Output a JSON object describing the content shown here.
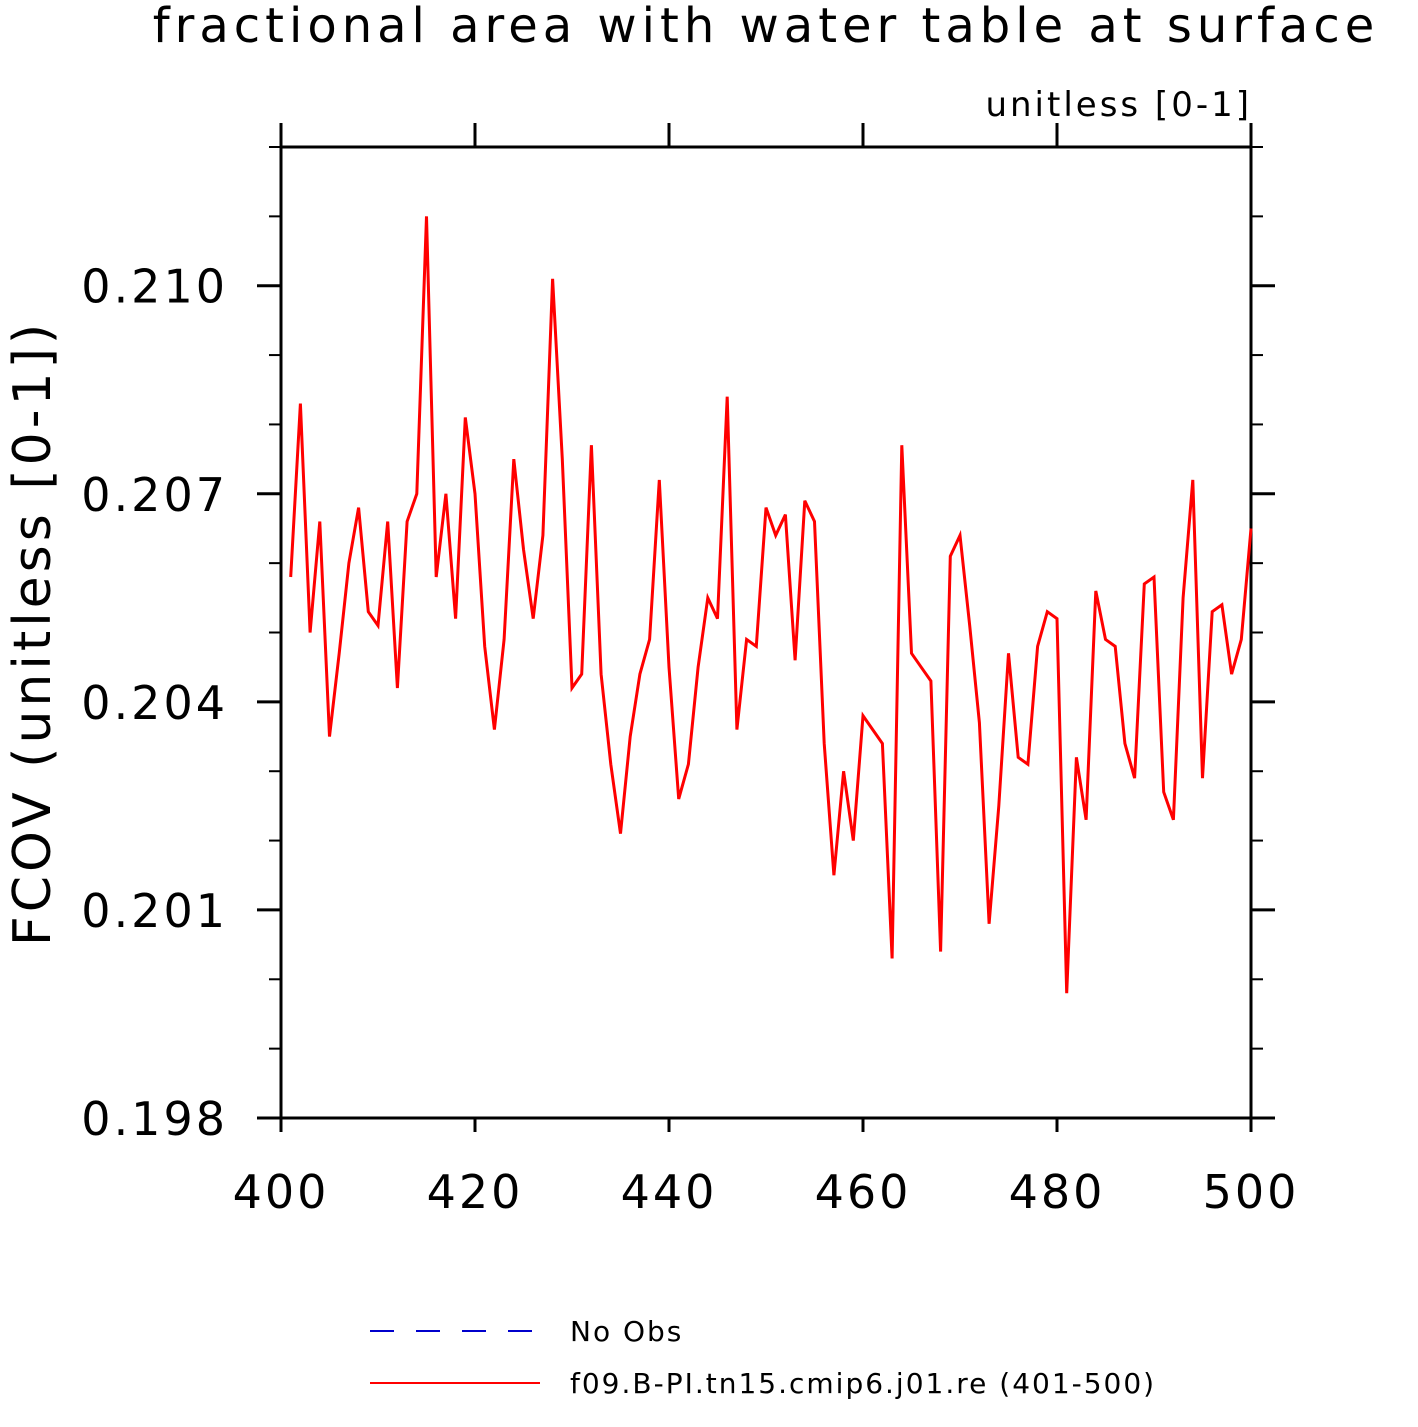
{
  "chart_data": {
    "type": "line",
    "title": "fractional area with water table at surface",
    "subtitle": "unitless [0-1]",
    "xlabel": "",
    "ylabel": "FCOV  (unitless [0-1])",
    "xlim": [
      400,
      500
    ],
    "ylim": [
      0.198,
      0.212
    ],
    "x_ticks": [
      "400",
      "420",
      "440",
      "460",
      "480",
      "500"
    ],
    "y_ticks": [
      "0.198",
      "0.201",
      "0.204",
      "0.207",
      "0.210"
    ],
    "grid": false,
    "legend_position": "bottom-center",
    "series": [
      {
        "name": "No Obs",
        "color": "#0000cc",
        "style": "dashed",
        "x": [],
        "values": []
      },
      {
        "name": "f09.B-PI.tn15.cmip6.j01.re (401-500)",
        "color": "#ff0000",
        "style": "solid",
        "x": [
          401,
          402,
          403,
          404,
          405,
          406,
          407,
          408,
          409,
          410,
          411,
          412,
          413,
          414,
          415,
          416,
          417,
          418,
          419,
          420,
          421,
          422,
          423,
          424,
          425,
          426,
          427,
          428,
          429,
          430,
          431,
          432,
          433,
          434,
          435,
          436,
          437,
          438,
          439,
          440,
          441,
          442,
          443,
          444,
          445,
          446,
          447,
          448,
          449,
          450,
          451,
          452,
          453,
          454,
          455,
          456,
          457,
          458,
          459,
          460,
          461,
          462,
          463,
          464,
          465,
          466,
          467,
          468,
          469,
          470,
          471,
          472,
          473,
          474,
          475,
          476,
          477,
          478,
          479,
          480,
          481,
          482,
          483,
          484,
          485,
          486,
          487,
          488,
          489,
          490,
          491,
          492,
          493,
          494,
          495,
          496,
          497,
          498,
          499,
          500
        ],
        "values": [
          0.2058,
          0.2083,
          0.205,
          0.2066,
          0.2035,
          0.2047,
          0.206,
          0.2068,
          0.2053,
          0.2051,
          0.2066,
          0.2042,
          0.2066,
          0.207,
          0.211,
          0.2058,
          0.207,
          0.2052,
          0.2081,
          0.207,
          0.2048,
          0.2036,
          0.2049,
          0.2075,
          0.2062,
          0.2052,
          0.2064,
          0.2101,
          0.2075,
          0.2042,
          0.2044,
          0.2077,
          0.2044,
          0.2031,
          0.2021,
          0.2035,
          0.2044,
          0.2049,
          0.2072,
          0.2045,
          0.2026,
          0.2031,
          0.2045,
          0.2055,
          0.2052,
          0.2084,
          0.2036,
          0.2049,
          0.2048,
          0.2068,
          0.2064,
          0.2067,
          0.2046,
          0.2069,
          0.2066,
          0.2034,
          0.2015,
          0.203,
          0.202,
          0.2038,
          0.2036,
          0.2034,
          0.2003,
          0.2077,
          0.2047,
          0.2045,
          0.2043,
          0.2004,
          0.2061,
          0.2064,
          0.2051,
          0.2037,
          0.2008,
          0.2025,
          0.2047,
          0.2032,
          0.2031,
          0.2048,
          0.2053,
          0.2052,
          0.1998,
          0.2032,
          0.2023,
          0.2056,
          0.2049,
          0.2048,
          0.2034,
          0.2029,
          0.2057,
          0.2058,
          0.2027,
          0.2023,
          0.2055,
          0.2072,
          0.2029,
          0.2053,
          0.2054,
          0.2044,
          0.2049,
          0.2065
        ]
      }
    ]
  }
}
